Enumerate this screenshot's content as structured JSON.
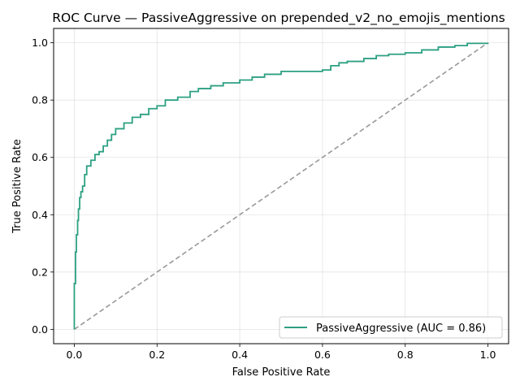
{
  "chart_data": {
    "type": "line",
    "title": "ROC Curve — PassiveAggressive on prepended_v2_no_emojis_mentions",
    "xlabel": "False Positive Rate",
    "ylabel": "True Positive Rate",
    "xlim": [
      -0.05,
      1.05
    ],
    "ylim": [
      -0.05,
      1.05
    ],
    "x_ticks": [
      "0.0",
      "0.2",
      "0.4",
      "0.6",
      "0.8",
      "1.0"
    ],
    "y_ticks": [
      "0.0",
      "0.2",
      "0.4",
      "0.6",
      "0.8",
      "1.0"
    ],
    "grid": true,
    "legend_position": "lower-right",
    "series": [
      {
        "name": "PassiveAggressive (AUC = 0.86)",
        "color": "#2ca082",
        "style": "solid",
        "x": [
          0.0,
          0.0,
          0.003,
          0.005,
          0.008,
          0.01,
          0.013,
          0.016,
          0.02,
          0.025,
          0.03,
          0.04,
          0.05,
          0.06,
          0.07,
          0.08,
          0.09,
          0.1,
          0.12,
          0.14,
          0.16,
          0.18,
          0.2,
          0.22,
          0.25,
          0.28,
          0.3,
          0.33,
          0.36,
          0.4,
          0.43,
          0.46,
          0.5,
          0.55,
          0.6,
          0.62,
          0.64,
          0.66,
          0.7,
          0.73,
          0.76,
          0.8,
          0.84,
          0.88,
          0.92,
          0.95,
          1.0
        ],
        "y": [
          0.0,
          0.16,
          0.27,
          0.33,
          0.38,
          0.42,
          0.46,
          0.48,
          0.5,
          0.54,
          0.57,
          0.59,
          0.61,
          0.62,
          0.64,
          0.66,
          0.68,
          0.7,
          0.72,
          0.74,
          0.75,
          0.77,
          0.78,
          0.8,
          0.81,
          0.83,
          0.84,
          0.85,
          0.86,
          0.87,
          0.88,
          0.89,
          0.9,
          0.9,
          0.905,
          0.92,
          0.93,
          0.935,
          0.945,
          0.955,
          0.96,
          0.965,
          0.975,
          0.985,
          0.99,
          0.998,
          1.0
        ]
      },
      {
        "name": "",
        "color": "#999999",
        "style": "dashed",
        "x": [
          0,
          1
        ],
        "y": [
          0,
          1
        ]
      }
    ]
  }
}
